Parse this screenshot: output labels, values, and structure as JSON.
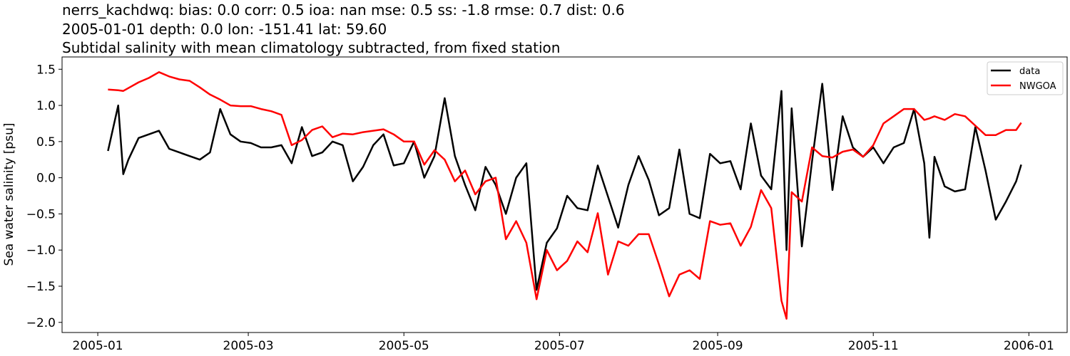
{
  "title_lines": [
    "nerrs_kachdwq: bias: 0.0  corr: 0.5  ioa: nan  mse: 0.5  ss: -1.8  rmse: 0.7  dist: 0.6",
    "2005-01-01 depth: 0.0 lon: -151.41 lat: 59.60",
    "Subtidal salinity with mean climatology subtracted, from fixed station"
  ],
  "chart_data": {
    "type": "line",
    "title": "nerrs_kachdwq: bias: 0.0  corr: 0.5  ioa: nan  mse: 0.5  ss: -1.8  rmse: 0.7  dist: 0.6 / 2005-01-01 depth: 0.0 lon: -151.41 lat: 59.60 / Subtidal salinity with mean climatology subtracted, from fixed station",
    "xlabel": "",
    "ylabel": "Sea water salinity [psu]",
    "xlim": [
      "2004-12-18",
      "2006-01-16"
    ],
    "ylim": [
      -2.14,
      1.67
    ],
    "x_ticks": [
      "2005-01",
      "2005-03",
      "2005-05",
      "2005-07",
      "2005-09",
      "2005-11",
      "2006-01"
    ],
    "y_ticks": [
      "1.5",
      "1.0",
      "0.5",
      "0.0",
      "−0.5",
      "−1.0",
      "−1.5",
      "−2.0"
    ],
    "y_tick_values": [
      1.5,
      1.0,
      0.5,
      0.0,
      -0.5,
      -1.0,
      -1.5,
      -2.0
    ],
    "grid": false,
    "legend_position": "top-right",
    "x": [
      "2005-01-05",
      "2005-01-09",
      "2005-01-11",
      "2005-01-13",
      "2005-01-17",
      "2005-01-21",
      "2005-01-25",
      "2005-01-29",
      "2005-02-02",
      "2005-02-06",
      "2005-02-10",
      "2005-02-14",
      "2005-02-18",
      "2005-02-22",
      "2005-02-26",
      "2005-03-02",
      "2005-03-06",
      "2005-03-10",
      "2005-03-14",
      "2005-03-18",
      "2005-03-22",
      "2005-03-26",
      "2005-03-30",
      "2005-04-03",
      "2005-04-07",
      "2005-04-11",
      "2005-04-15",
      "2005-04-19",
      "2005-04-23",
      "2005-04-27",
      "2005-05-01",
      "2005-05-05",
      "2005-05-09",
      "2005-05-13",
      "2005-05-17",
      "2005-05-21",
      "2005-05-25",
      "2005-05-29",
      "2005-06-02",
      "2005-06-06",
      "2005-06-10",
      "2005-06-14",
      "2005-06-18",
      "2005-06-22",
      "2005-06-26",
      "2005-06-30",
      "2005-07-04",
      "2005-07-08",
      "2005-07-12",
      "2005-07-16",
      "2005-07-20",
      "2005-07-24",
      "2005-07-28",
      "2005-08-01",
      "2005-08-05",
      "2005-08-09",
      "2005-08-13",
      "2005-08-17",
      "2005-08-21",
      "2005-08-25",
      "2005-08-29",
      "2005-09-02",
      "2005-09-06",
      "2005-09-10",
      "2005-09-14",
      "2005-09-18",
      "2005-09-22",
      "2005-09-26",
      "2005-09-28",
      "2005-09-30",
      "2005-10-04",
      "2005-10-08",
      "2005-10-12",
      "2005-10-16",
      "2005-10-20",
      "2005-10-24",
      "2005-10-28",
      "2005-11-01",
      "2005-11-05",
      "2005-11-09",
      "2005-11-13",
      "2005-11-17",
      "2005-11-21",
      "2005-11-23",
      "2005-11-25",
      "2005-11-29",
      "2005-12-03",
      "2005-12-07",
      "2005-12-11",
      "2005-12-15",
      "2005-12-19",
      "2005-12-23",
      "2005-12-27",
      "2005-12-29"
    ],
    "series": [
      {
        "name": "data",
        "color": "#000000",
        "values": [
          0.37,
          1.0,
          0.05,
          0.25,
          0.55,
          0.6,
          0.65,
          0.4,
          0.35,
          0.3,
          0.25,
          0.35,
          0.95,
          0.6,
          0.5,
          0.48,
          0.42,
          0.42,
          0.45,
          0.2,
          0.7,
          0.3,
          0.35,
          0.5,
          0.45,
          -0.05,
          0.15,
          0.45,
          0.6,
          0.17,
          0.2,
          0.5,
          0.0,
          0.3,
          1.1,
          0.3,
          -0.1,
          -0.45,
          0.15,
          -0.1,
          -0.5,
          0.0,
          0.2,
          -1.55,
          -0.9,
          -0.7,
          -0.25,
          -0.42,
          -0.45,
          0.17,
          -0.26,
          -0.69,
          -0.1,
          0.3,
          -0.03,
          -0.52,
          -0.42,
          0.39,
          -0.5,
          -0.56,
          0.33,
          0.2,
          0.23,
          -0.16,
          0.75,
          0.03,
          -0.16,
          1.2,
          -1.0,
          0.96,
          -0.95,
          0.23,
          1.3,
          -0.17,
          0.85,
          0.42,
          0.29,
          0.42,
          0.2,
          0.42,
          0.48,
          0.95,
          0.2,
          -0.83,
          0.29,
          -0.12,
          -0.19,
          -0.16,
          0.7,
          0.1,
          -0.58,
          -0.33,
          -0.05,
          0.18
        ]
      },
      {
        "name": "NWGOA",
        "color": "#ff0000",
        "values": [
          1.22,
          1.21,
          1.2,
          1.24,
          1.32,
          1.38,
          1.46,
          1.4,
          1.36,
          1.34,
          1.25,
          1.15,
          1.08,
          1.0,
          0.99,
          0.99,
          0.95,
          0.92,
          0.87,
          0.45,
          0.52,
          0.66,
          0.71,
          0.56,
          0.61,
          0.6,
          0.63,
          0.65,
          0.67,
          0.6,
          0.5,
          0.5,
          0.18,
          0.38,
          0.25,
          -0.05,
          0.1,
          -0.23,
          -0.05,
          0.0,
          -0.85,
          -0.6,
          -0.9,
          -1.68,
          -1.0,
          -1.28,
          -1.15,
          -0.88,
          -1.03,
          -0.49,
          -1.34,
          -0.88,
          -0.94,
          -0.78,
          -0.78,
          -1.2,
          -1.64,
          -1.34,
          -1.28,
          -1.4,
          -0.6,
          -0.65,
          -0.63,
          -0.94,
          -0.68,
          -0.17,
          -0.42,
          -1.7,
          -1.95,
          -0.2,
          -0.33,
          0.42,
          0.3,
          0.28,
          0.36,
          0.39,
          0.29,
          0.45,
          0.75,
          0.85,
          0.95,
          0.95,
          0.8,
          0.82,
          0.85,
          0.8,
          0.88,
          0.85,
          0.72,
          0.59,
          0.59,
          0.66,
          0.66,
          0.76
        ]
      }
    ]
  }
}
